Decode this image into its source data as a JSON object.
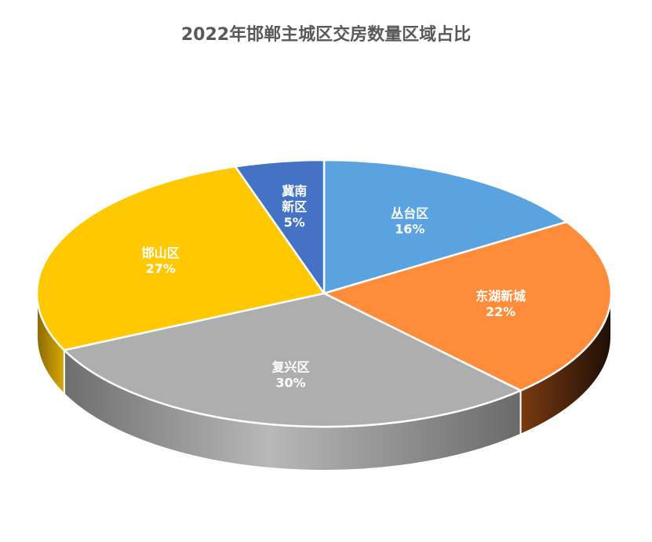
{
  "chart_data": {
    "type": "pie",
    "title": "2022年邯郸主城区交房数量区域占比",
    "three_d": true,
    "slices": [
      {
        "name": "丛台区",
        "value": 16,
        "label": "16%",
        "color": "#5ba3e0",
        "side_color": "#2f6fa8"
      },
      {
        "name": "东湖新城",
        "value": 22,
        "label": "22%",
        "color": "#ff8c3a",
        "side_color": "#b5561a"
      },
      {
        "name": "复兴区",
        "value": 30,
        "label": "30%",
        "color": "#aeaeae",
        "side_color": "#8a8a8a"
      },
      {
        "name": "邯山区",
        "value": 27,
        "label": "27%",
        "color": "#ffc800",
        "side_color": "#b8900a"
      },
      {
        "name": "冀南\n新区",
        "value": 5,
        "label": "5%",
        "color": "#4472c4",
        "side_color": "#2c4f8c"
      }
    ]
  }
}
